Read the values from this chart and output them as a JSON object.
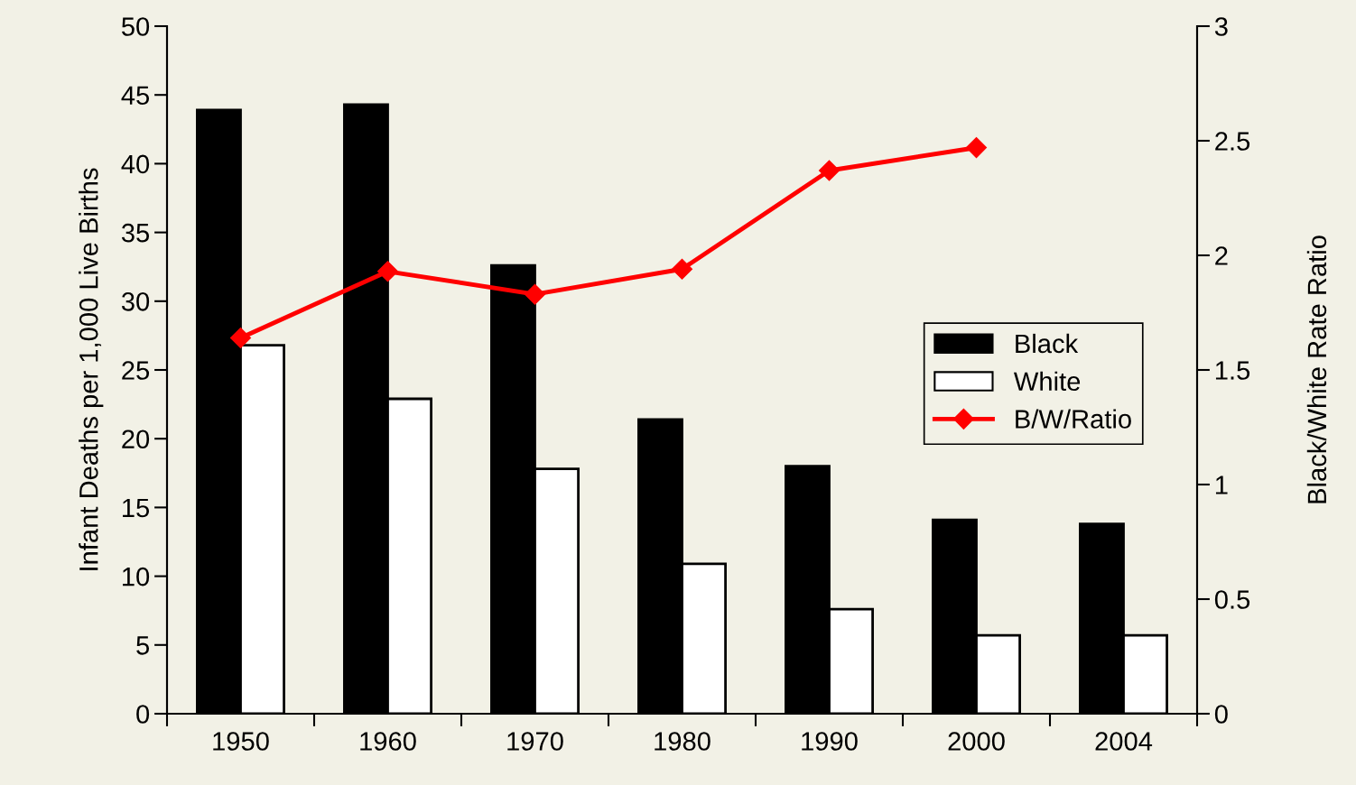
{
  "chart_data": {
    "type": "bar",
    "ylabel": "Infant Deaths per 1,000 Live Births",
    "y2label": "Black/White Rate Ratio",
    "categories": [
      "1950",
      "1960",
      "1970",
      "1980",
      "1990",
      "2000",
      "2004"
    ],
    "series": [
      {
        "name": "Black",
        "color": "#000000",
        "values": [
          43.9,
          44.3,
          32.6,
          21.4,
          18.0,
          14.1,
          13.8
        ]
      },
      {
        "name": "White",
        "color": "#ffffff",
        "values": [
          26.8,
          22.9,
          17.8,
          10.9,
          7.6,
          5.7,
          5.7
        ]
      },
      {
        "name": "B/W/Ratio",
        "type": "line",
        "axis": "y2",
        "color": "#ff0000",
        "marker": "diamond",
        "values": [
          1.64,
          1.93,
          1.83,
          1.94,
          2.37,
          2.47,
          null
        ]
      }
    ],
    "ylim": [
      0,
      50
    ],
    "yticks": [
      0,
      5,
      10,
      15,
      20,
      25,
      30,
      35,
      40,
      45,
      50
    ],
    "y2lim": [
      0,
      3
    ],
    "y2ticks": [
      0,
      0.5,
      1,
      1.5,
      2,
      2.5,
      3
    ],
    "legend": "right",
    "grid": false
  }
}
